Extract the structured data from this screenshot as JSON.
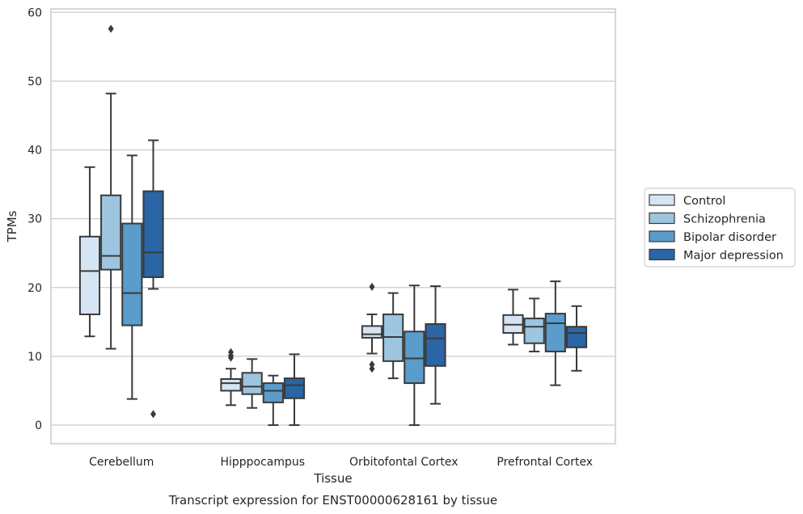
{
  "chart_data": {
    "type": "box",
    "xlabel": "Tissue",
    "ylabel": "TPMs",
    "caption": "Transcript expression for ENST00000628161 by tissue",
    "ylim": [
      -2.7,
      60.5
    ],
    "yticks": [
      0,
      10,
      20,
      30,
      40,
      50,
      60
    ],
    "grid": "horizontal",
    "legend_position": "right",
    "categories": [
      "Cerebellum",
      "Hipppocampus",
      "Orbitofontal Cortex",
      "Prefrontal Cortex"
    ],
    "series": [
      {
        "name": "Control",
        "color": "#d6e5f4",
        "boxes": [
          {
            "whisker_low": 12.9,
            "q1": 16.1,
            "median": 22.4,
            "q3": 27.4,
            "whisker_high": 37.5,
            "outliers": []
          },
          {
            "whisker_low": 2.9,
            "q1": 5.0,
            "median": 6.1,
            "q3": 6.7,
            "whisker_high": 8.2,
            "outliers": [
              9.8,
              10.1,
              10.6
            ]
          },
          {
            "whisker_low": 10.4,
            "q1": 12.7,
            "median": 13.2,
            "q3": 14.4,
            "whisker_high": 16.1,
            "outliers": [
              8.2,
              8.8,
              20.1
            ]
          },
          {
            "whisker_low": 11.7,
            "q1": 13.4,
            "median": 14.6,
            "q3": 16.0,
            "whisker_high": 19.7,
            "outliers": []
          }
        ]
      },
      {
        "name": "Schizophrenia",
        "color": "#9dc5e0",
        "boxes": [
          {
            "whisker_low": 11.1,
            "q1": 22.6,
            "median": 24.6,
            "q3": 33.4,
            "whisker_high": 48.2,
            "outliers": [
              57.6
            ]
          },
          {
            "whisker_low": 2.5,
            "q1": 4.5,
            "median": 5.6,
            "q3": 7.6,
            "whisker_high": 9.6,
            "outliers": []
          },
          {
            "whisker_low": 6.8,
            "q1": 9.3,
            "median": 12.8,
            "q3": 16.1,
            "whisker_high": 19.2,
            "outliers": []
          },
          {
            "whisker_low": 10.7,
            "q1": 11.9,
            "median": 14.3,
            "q3": 15.5,
            "whisker_high": 18.4,
            "outliers": []
          }
        ]
      },
      {
        "name": "Bipolar disorder",
        "color": "#5a9ccb",
        "boxes": [
          {
            "whisker_low": 3.8,
            "q1": 14.5,
            "median": 19.2,
            "q3": 29.3,
            "whisker_high": 39.2,
            "outliers": []
          },
          {
            "whisker_low": 0.0,
            "q1": 3.3,
            "median": 5.0,
            "q3": 6.1,
            "whisker_high": 7.2,
            "outliers": []
          },
          {
            "whisker_low": 0.0,
            "q1": 6.1,
            "median": 9.7,
            "q3": 13.6,
            "whisker_high": 20.3,
            "outliers": []
          },
          {
            "whisker_low": 5.8,
            "q1": 10.7,
            "median": 14.8,
            "q3": 16.2,
            "whisker_high": 20.9,
            "outliers": []
          }
        ]
      },
      {
        "name": "Major depression",
        "color": "#2a65a5",
        "boxes": [
          {
            "whisker_low": 19.8,
            "q1": 21.5,
            "median": 25.1,
            "q3": 34.0,
            "whisker_high": 41.4,
            "outliers": [
              1.6
            ]
          },
          {
            "whisker_low": 0.0,
            "q1": 3.9,
            "median": 5.8,
            "q3": 6.8,
            "whisker_high": 10.3,
            "outliers": []
          },
          {
            "whisker_low": 3.1,
            "q1": 8.6,
            "median": 12.6,
            "q3": 14.7,
            "whisker_high": 20.2,
            "outliers": []
          },
          {
            "whisker_low": 7.9,
            "q1": 11.3,
            "median": 13.4,
            "q3": 14.3,
            "whisker_high": 17.3,
            "outliers": []
          }
        ]
      }
    ]
  }
}
